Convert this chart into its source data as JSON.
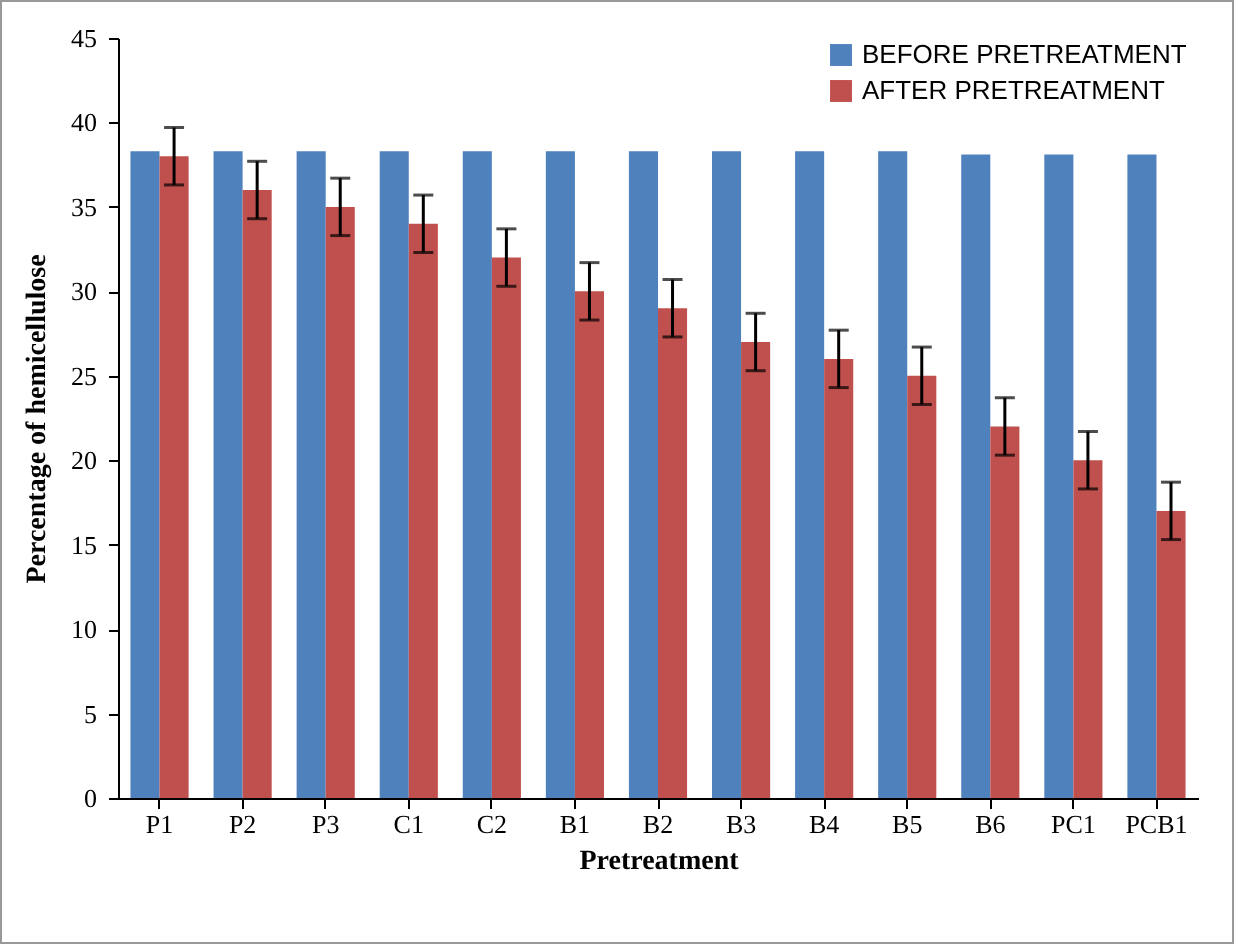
{
  "chart_data": {
    "type": "bar",
    "xlabel": "Pretreatment",
    "ylabel": "Percentage of hemicellulose",
    "categories": [
      "P1",
      "P2",
      "P3",
      "C1",
      "C2",
      "B1",
      "B2",
      "B3",
      "B4",
      "B5",
      "B6",
      "PC1",
      "PCB1"
    ],
    "series": [
      {
        "name": "BEFORE  PRETREATMENT",
        "color": "#4f81bd",
        "values": [
          38.3,
          38.3,
          38.3,
          38.3,
          38.3,
          38.3,
          38.3,
          38.3,
          38.3,
          38.3,
          38.1,
          38.1,
          38.1
        ]
      },
      {
        "name": "AFTER  PRETREATMENT",
        "color": "#c0504d",
        "values": [
          38,
          36,
          35,
          34,
          32,
          30,
          29,
          27,
          26,
          25,
          22,
          20,
          17
        ],
        "errors": [
          1.7,
          1.7,
          1.7,
          1.7,
          1.7,
          1.7,
          1.7,
          1.7,
          1.7,
          1.7,
          1.7,
          1.7,
          1.7
        ]
      }
    ],
    "ylim": [
      0,
      45
    ],
    "yticks": [
      0,
      5,
      10,
      15,
      20,
      25,
      30,
      35,
      40,
      45
    ],
    "grid": false,
    "legend": "top right"
  }
}
